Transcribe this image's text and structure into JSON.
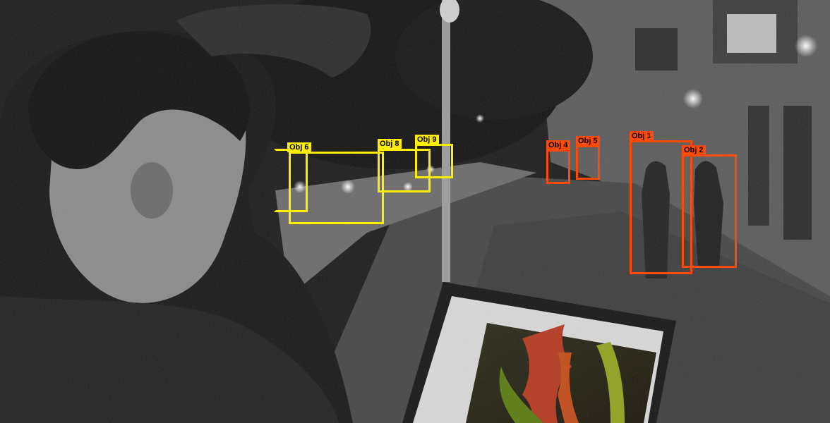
{
  "colors": {
    "yellow": "#ffee00",
    "orange": "#ff4a0a"
  },
  "scene": {
    "description_icon": "night-street-photo-icon"
  },
  "detections": [
    {
      "label": "Obj 1",
      "color": "orange"
    },
    {
      "label": "Obj 2",
      "color": "orange"
    },
    {
      "label": "Obj 4",
      "color": "orange"
    },
    {
      "label": "Obj 5",
      "color": "orange"
    },
    {
      "label": "Obj 6",
      "color": "yellow"
    },
    {
      "label": "Obj 8",
      "color": "yellow"
    },
    {
      "label": "Obj 9",
      "color": "yellow"
    }
  ]
}
